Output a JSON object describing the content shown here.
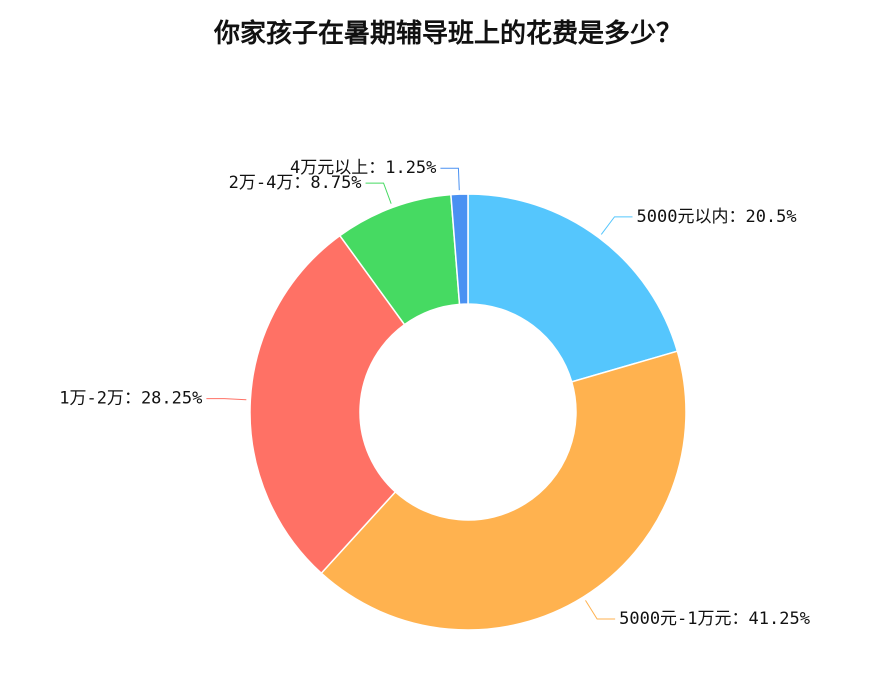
{
  "chart_data": {
    "type": "pie",
    "title": "你家孩子在暑期辅导班上的花费是多少？",
    "categories": [
      "5000元以内",
      "5000元-1万元",
      "1万-2万",
      "2万-4万",
      "4万元以上"
    ],
    "values": [
      20.5,
      41.25,
      28.25,
      8.75,
      1.25
    ],
    "value_labels": [
      "20.5%",
      "41.25%",
      "28.25%",
      "8.75%",
      "1.25%"
    ],
    "label_separator": "：",
    "colors": [
      "#55c6fd",
      "#ffb24f",
      "#ff7165",
      "#46da62",
      "#4a91f2"
    ]
  }
}
